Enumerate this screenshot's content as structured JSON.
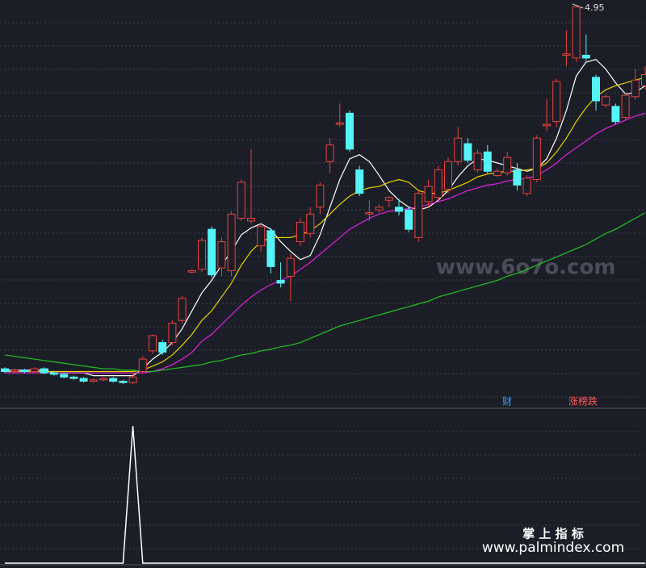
{
  "chart_data": {
    "type": "candlestick",
    "high_label": "4.95",
    "ylim": [
      2.05,
      5.0
    ],
    "up_color": "#e8423c",
    "down_color": "#54f4f8",
    "open": [
      2.33,
      2.31,
      2.32,
      2.31,
      2.33,
      2.3,
      2.29,
      2.27,
      2.26,
      2.24,
      2.25,
      2.26,
      2.24,
      2.23,
      2.31,
      2.46,
      2.52,
      2.52,
      2.68,
      3.03,
      3.05,
      3.34,
      3.06,
      3.04,
      3.42,
      3.4,
      3.22,
      3.33,
      2.97,
      3.0,
      3.25,
      3.31,
      3.5,
      3.83,
      4.1,
      4.18,
      3.77,
      3.45,
      3.48,
      3.55,
      3.5,
      3.48,
      3.28,
      3.54,
      3.57,
      3.63,
      3.83,
      3.96,
      3.77,
      3.9,
      3.73,
      3.75,
      3.77,
      3.6,
      3.7,
      4.09,
      4.12,
      4.6,
      4.58,
      4.6,
      4.44,
      4.24,
      4.23,
      4.15,
      4.3,
      4.38
    ],
    "close": [
      2.31,
      2.32,
      2.31,
      2.33,
      2.3,
      2.29,
      2.27,
      2.26,
      2.24,
      2.25,
      2.26,
      2.24,
      2.23,
      2.27,
      2.4,
      2.57,
      2.45,
      2.66,
      2.84,
      3.04,
      3.26,
      3.01,
      3.25,
      3.45,
      3.68,
      3.42,
      3.36,
      3.07,
      2.95,
      3.13,
      3.39,
      3.45,
      3.66,
      3.95,
      4.11,
      3.92,
      3.6,
      3.46,
      3.5,
      3.57,
      3.47,
      3.34,
      3.6,
      3.65,
      3.77,
      3.83,
      4.0,
      3.84,
      3.89,
      3.76,
      3.76,
      3.86,
      3.66,
      3.71,
      4.0,
      4.1,
      4.41,
      4.61,
      4.95,
      4.58,
      4.27,
      4.3,
      4.12,
      4.31,
      4.42,
      4.46
    ],
    "high": [
      2.34,
      2.33,
      2.33,
      2.34,
      2.34,
      2.31,
      2.3,
      2.28,
      2.27,
      2.26,
      2.27,
      2.27,
      2.25,
      2.3,
      2.42,
      2.58,
      2.54,
      2.68,
      2.86,
      3.05,
      3.28,
      3.36,
      3.28,
      3.47,
      3.7,
      3.92,
      3.38,
      3.35,
      3.1,
      3.16,
      3.42,
      3.5,
      3.68,
      4.0,
      4.25,
      4.2,
      3.8,
      3.55,
      3.52,
      3.58,
      3.56,
      3.5,
      3.62,
      3.7,
      3.8,
      3.86,
      4.08,
      4.0,
      3.92,
      3.95,
      3.78,
      3.9,
      3.82,
      3.73,
      4.02,
      4.28,
      4.43,
      4.78,
      4.95,
      4.75,
      4.46,
      4.32,
      4.25,
      4.33,
      4.5,
      4.52
    ],
    "low": [
      2.3,
      2.3,
      2.3,
      2.3,
      2.29,
      2.28,
      2.26,
      2.25,
      2.23,
      2.23,
      2.24,
      2.23,
      2.22,
      2.22,
      2.3,
      2.44,
      2.43,
      2.5,
      2.66,
      3.02,
      3.03,
      2.99,
      3.0,
      3.0,
      3.4,
      3.38,
      3.18,
      3.02,
      2.92,
      2.82,
      3.22,
      3.28,
      3.45,
      3.75,
      4.08,
      3.9,
      3.58,
      3.4,
      3.46,
      3.5,
      3.44,
      3.32,
      3.25,
      3.5,
      3.55,
      3.6,
      3.8,
      3.82,
      3.75,
      3.74,
      3.72,
      3.73,
      3.62,
      3.58,
      3.68,
      4.05,
      4.08,
      4.52,
      4.55,
      4.56,
      4.2,
      4.22,
      4.1,
      4.13,
      4.28,
      4.35
    ],
    "series": [
      {
        "color": "#ffffff",
        "values": [
          2.32,
          2.32,
          2.32,
          2.32,
          2.32,
          2.3,
          2.3,
          2.3,
          2.3,
          2.28,
          2.28,
          2.28,
          2.28,
          2.28,
          2.33,
          2.4,
          2.45,
          2.52,
          2.62,
          2.75,
          2.88,
          2.97,
          3.08,
          3.18,
          3.3,
          3.35,
          3.38,
          3.34,
          3.25,
          3.18,
          3.12,
          3.15,
          3.3,
          3.5,
          3.7,
          3.85,
          3.88,
          3.83,
          3.73,
          3.62,
          3.55,
          3.5,
          3.48,
          3.5,
          3.55,
          3.62,
          3.72,
          3.8,
          3.85,
          3.84,
          3.82,
          3.8,
          3.78,
          3.76,
          3.78,
          3.85,
          4.0,
          4.2,
          4.45,
          4.55,
          4.57,
          4.5,
          4.4,
          4.32,
          4.33,
          4.38
        ]
      },
      {
        "color": "#e8d200",
        "values": [
          2.31,
          2.31,
          2.31,
          2.31,
          2.31,
          2.31,
          2.31,
          2.31,
          2.31,
          2.31,
          2.31,
          2.31,
          2.31,
          2.31,
          2.32,
          2.35,
          2.38,
          2.43,
          2.5,
          2.58,
          2.68,
          2.75,
          2.85,
          2.95,
          3.08,
          3.18,
          3.25,
          3.28,
          3.28,
          3.28,
          3.3,
          3.33,
          3.38,
          3.45,
          3.52,
          3.58,
          3.62,
          3.64,
          3.65,
          3.68,
          3.7,
          3.68,
          3.62,
          3.6,
          3.6,
          3.62,
          3.65,
          3.68,
          3.72,
          3.74,
          3.75,
          3.76,
          3.76,
          3.77,
          3.78,
          3.82,
          3.9,
          4.0,
          4.12,
          4.22,
          4.3,
          4.35,
          4.38,
          4.4,
          4.42,
          4.44
        ]
      },
      {
        "color": "#e020e0",
        "values": [
          2.3,
          2.3,
          2.3,
          2.3,
          2.3,
          2.3,
          2.3,
          2.3,
          2.3,
          2.3,
          2.3,
          2.3,
          2.3,
          2.3,
          2.3,
          2.31,
          2.33,
          2.36,
          2.4,
          2.45,
          2.53,
          2.58,
          2.65,
          2.72,
          2.79,
          2.85,
          2.9,
          2.94,
          2.97,
          3.0,
          3.05,
          3.1,
          3.16,
          3.22,
          3.28,
          3.34,
          3.38,
          3.42,
          3.45,
          3.47,
          3.48,
          3.49,
          3.5,
          3.52,
          3.54,
          3.56,
          3.59,
          3.62,
          3.64,
          3.66,
          3.67,
          3.69,
          3.7,
          3.71,
          3.73,
          3.77,
          3.82,
          3.88,
          3.93,
          3.98,
          4.03,
          4.07,
          4.1,
          4.13,
          4.16,
          4.18
        ]
      },
      {
        "color": "#22c322",
        "values": [
          2.43,
          2.42,
          2.41,
          2.4,
          2.39,
          2.38,
          2.37,
          2.36,
          2.35,
          2.34,
          2.33,
          2.33,
          2.32,
          2.32,
          2.31,
          2.31,
          2.32,
          2.33,
          2.34,
          2.35,
          2.36,
          2.38,
          2.39,
          2.41,
          2.43,
          2.44,
          2.46,
          2.47,
          2.49,
          2.5,
          2.52,
          2.55,
          2.58,
          2.61,
          2.64,
          2.66,
          2.68,
          2.7,
          2.72,
          2.74,
          2.76,
          2.78,
          2.8,
          2.82,
          2.85,
          2.87,
          2.89,
          2.91,
          2.93,
          2.95,
          2.97,
          3.0,
          3.02,
          3.05,
          3.08,
          3.11,
          3.14,
          3.17,
          3.2,
          3.23,
          3.27,
          3.31,
          3.34,
          3.38,
          3.42,
          3.46
        ]
      }
    ],
    "indicator": {
      "color": "#ffffff",
      "ylim": [
        0,
        1
      ],
      "values": [
        0,
        0,
        0,
        0,
        0,
        0,
        0,
        0,
        0,
        0,
        0,
        0,
        0,
        1,
        0,
        0,
        0,
        0,
        0,
        0,
        0,
        0,
        0,
        0,
        0,
        0,
        0,
        0,
        0,
        0,
        0,
        0,
        0,
        0,
        0,
        0,
        0,
        0,
        0,
        0,
        0,
        0,
        0,
        0,
        0,
        0,
        0,
        0,
        0,
        0,
        0,
        0,
        0,
        0,
        0,
        0,
        0,
        0,
        0,
        0,
        0,
        0,
        0,
        0,
        0,
        0
      ]
    },
    "badges": [
      {
        "text": "财",
        "color": "#3f9cff"
      },
      {
        "text": "涨榜跌",
        "color": "#ff5a5a"
      }
    ],
    "watermarks": [
      "www.6o7o.com",
      "掌 上 指 标",
      "www.palmindex.com"
    ]
  }
}
